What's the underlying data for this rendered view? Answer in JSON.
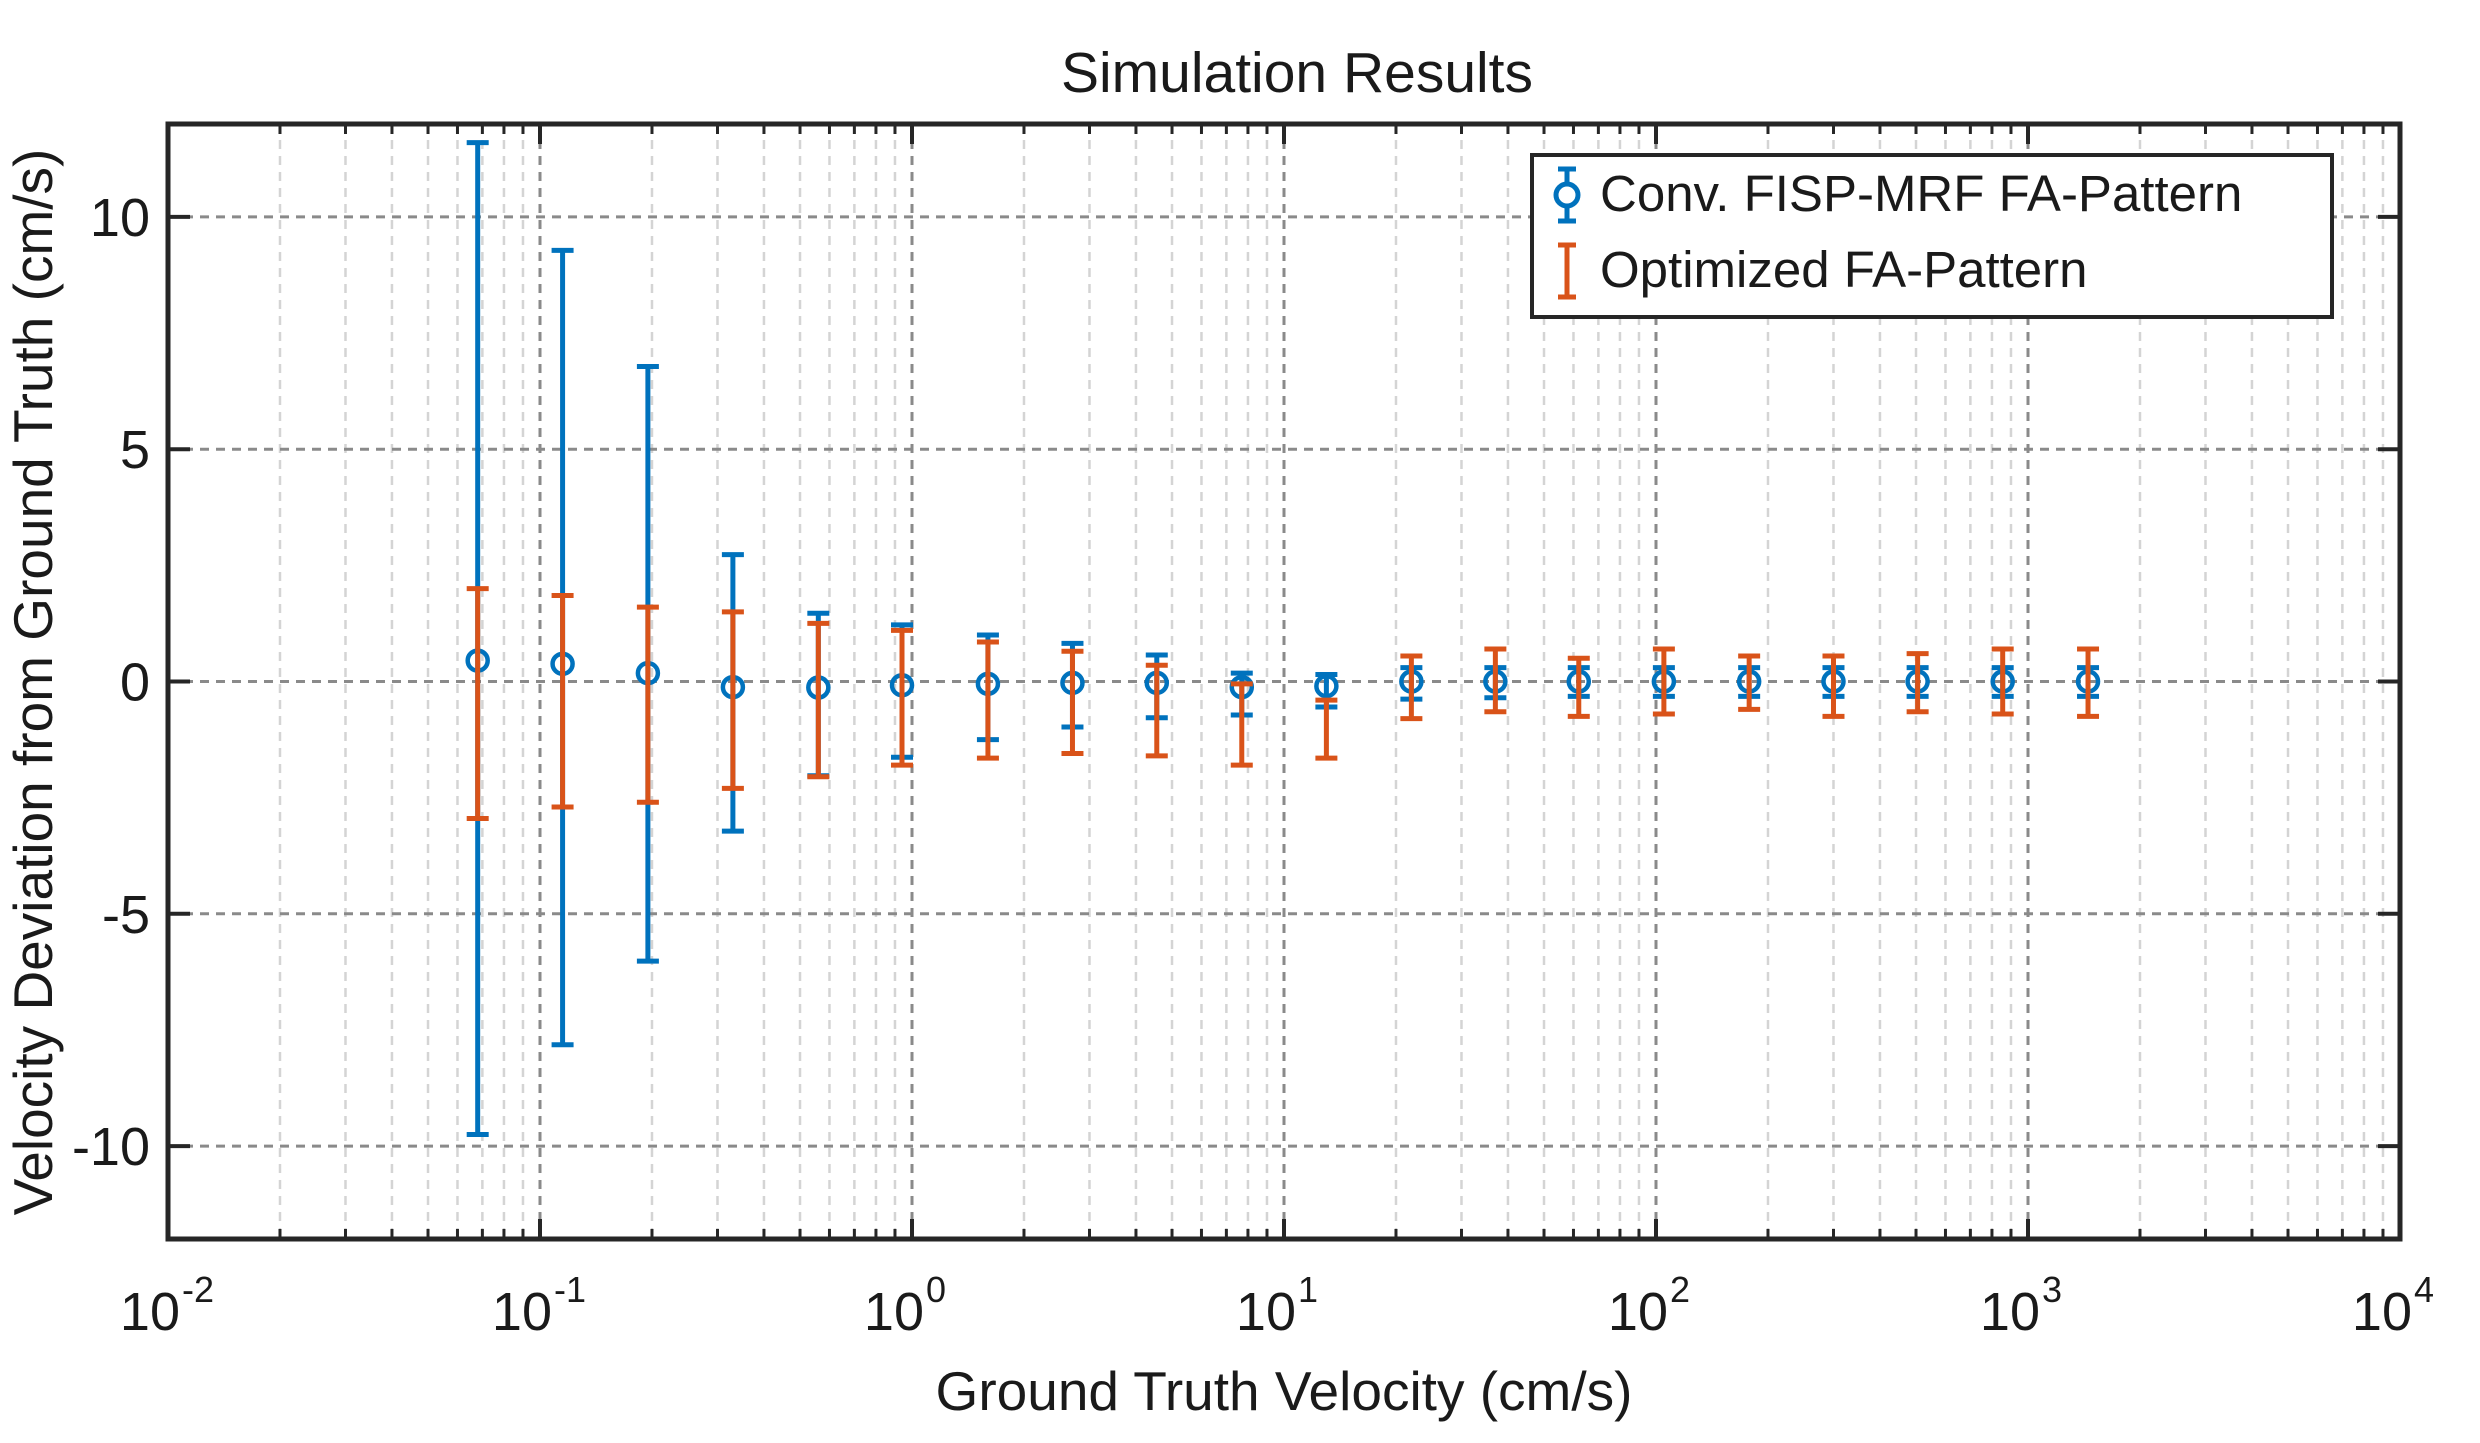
{
  "chart_data": {
    "type": "errorbar",
    "title": "Simulation Results",
    "xlabel": "Ground Truth Velocity (cm/s)",
    "ylabel": "Velocity Deviation from Ground Truth (cm/s)",
    "xscale": "log",
    "xlim": [
      0.01,
      10000
    ],
    "ylim": [
      -12,
      12
    ],
    "x_ticks": [
      {
        "base": "10",
        "exp": "-2",
        "value": 0.01
      },
      {
        "base": "10",
        "exp": "-1",
        "value": 0.1
      },
      {
        "base": "10",
        "exp": "0",
        "value": 1
      },
      {
        "base": "10",
        "exp": "1",
        "value": 10
      },
      {
        "base": "10",
        "exp": "2",
        "value": 100
      },
      {
        "base": "10",
        "exp": "3",
        "value": 1000
      },
      {
        "base": "10",
        "exp": "4",
        "value": 10000
      }
    ],
    "y_ticks": [
      {
        "label": "10",
        "value": 10
      },
      {
        "label": "5",
        "value": 5
      },
      {
        "label": "0",
        "value": 0
      },
      {
        "label": "-5",
        "value": -5
      },
      {
        "label": "-10",
        "value": -10
      }
    ],
    "grid": true,
    "legend_position": "top-right",
    "x": [
      0.068,
      0.115,
      0.195,
      0.33,
      0.56,
      0.94,
      1.6,
      2.7,
      4.55,
      7.7,
      13,
      22,
      37,
      62,
      105,
      178,
      300,
      505,
      855,
      1450
    ],
    "series": [
      {
        "name": "Conv. FISP-MRF FA-Pattern",
        "color": "#0072BD",
        "marker": "circle",
        "y": [
          0.45,
          0.38,
          0.18,
          -0.12,
          -0.13,
          -0.08,
          -0.05,
          -0.03,
          -0.03,
          -0.12,
          -0.1,
          0.0,
          0.0,
          0.0,
          0.0,
          0.0,
          0.0,
          0.0,
          0.0,
          0.0
        ],
        "lower": [
          -10.2,
          -8.2,
          -6.2,
          -3.1,
          -1.9,
          -1.55,
          -1.2,
          -0.95,
          -0.75,
          -0.6,
          -0.45,
          -0.38,
          -0.35,
          -0.32,
          -0.32,
          -0.32,
          -0.32,
          -0.32,
          -0.32,
          -0.32
        ],
        "upper": [
          11.15,
          8.9,
          6.6,
          2.85,
          1.6,
          1.3,
          1.05,
          0.85,
          0.6,
          0.3,
          0.25,
          0.3,
          0.3,
          0.3,
          0.3,
          0.3,
          0.3,
          0.3,
          0.3,
          0.3
        ]
      },
      {
        "name": "Optimized FA-Pattern",
        "color": "#D95319",
        "marker": "none",
        "y": [
          -0.25,
          -0.2,
          -0.25,
          -0.2,
          -0.2,
          -0.15,
          -0.2,
          -0.2,
          -0.3,
          -0.45,
          -0.45,
          -0.05,
          0.0,
          -0.05,
          0.0,
          0.0,
          -0.05,
          0.0,
          0.0,
          0.0
        ],
        "lower": [
          -2.7,
          -2.5,
          -2.35,
          -2.1,
          -1.85,
          -1.65,
          -1.45,
          -1.35,
          -1.3,
          -1.35,
          -1.2,
          -0.75,
          -0.65,
          -0.7,
          -0.7,
          -0.6,
          -0.7,
          -0.65,
          -0.7,
          -0.75
        ],
        "upper": [
          2.25,
          2.05,
          1.85,
          1.7,
          1.45,
          1.25,
          1.05,
          0.85,
          0.65,
          0.4,
          0.05,
          0.6,
          0.7,
          0.55,
          0.7,
          0.55,
          0.6,
          0.6,
          0.7,
          0.7
        ]
      }
    ]
  }
}
